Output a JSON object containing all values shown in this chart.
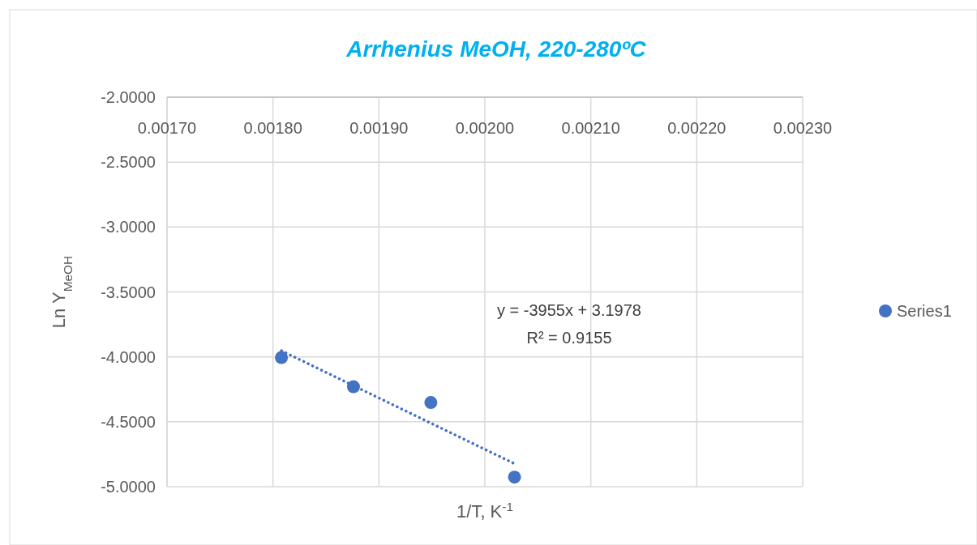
{
  "chart_data": {
    "type": "scatter",
    "title": "Arrhenius MeOH, 220-280ºC",
    "xlabel": "1/T, K$^{-1}$",
    "ylabel": "Ln Y$_{MeOH}$",
    "annotations": [
      "y = -3955x + 3.1978",
      "R² = 0.9155"
    ],
    "series": [
      {
        "name": "Series1",
        "color": "#4472c4",
        "marker": "circle",
        "x": [
          0.001808,
          0.001876,
          0.001949,
          0.002028
        ],
        "values": [
          -4.005,
          -4.23,
          -4.352,
          -4.926
        ]
      },
      {
        "type": "line",
        "color": "#4472c4",
        "line_style": "dotted",
        "marker": "none",
        "x": [
          0.001808,
          0.002028
        ],
        "values": [
          -3.953,
          -4.823
        ]
      }
    ],
    "xlim": [
      0.0017,
      0.0023
    ],
    "xticks": [
      {
        "value": 0.0017,
        "label": "0.00170"
      },
      {
        "value": 0.0018,
        "label": "0.00180"
      },
      {
        "value": 0.0019,
        "label": "0.00190"
      },
      {
        "value": 0.002,
        "label": "0.00200"
      },
      {
        "value": 0.0021,
        "label": "0.00210"
      },
      {
        "value": 0.0022,
        "label": "0.00220"
      },
      {
        "value": 0.0023,
        "label": "0.00230"
      }
    ],
    "ylim": [
      -5,
      -2
    ],
    "yticks": [
      {
        "value": -2,
        "label": "-2.0000"
      },
      {
        "value": -2.5,
        "label": "-2.5000"
      },
      {
        "value": -3,
        "label": "-3.0000"
      },
      {
        "value": -3.5,
        "label": "-3.5000"
      },
      {
        "value": -4,
        "label": "-4.0000"
      },
      {
        "value": -4.5,
        "label": "-4.5000"
      },
      {
        "value": -5,
        "label": "-5.0000"
      }
    ],
    "grid": true,
    "legend": "right"
  }
}
